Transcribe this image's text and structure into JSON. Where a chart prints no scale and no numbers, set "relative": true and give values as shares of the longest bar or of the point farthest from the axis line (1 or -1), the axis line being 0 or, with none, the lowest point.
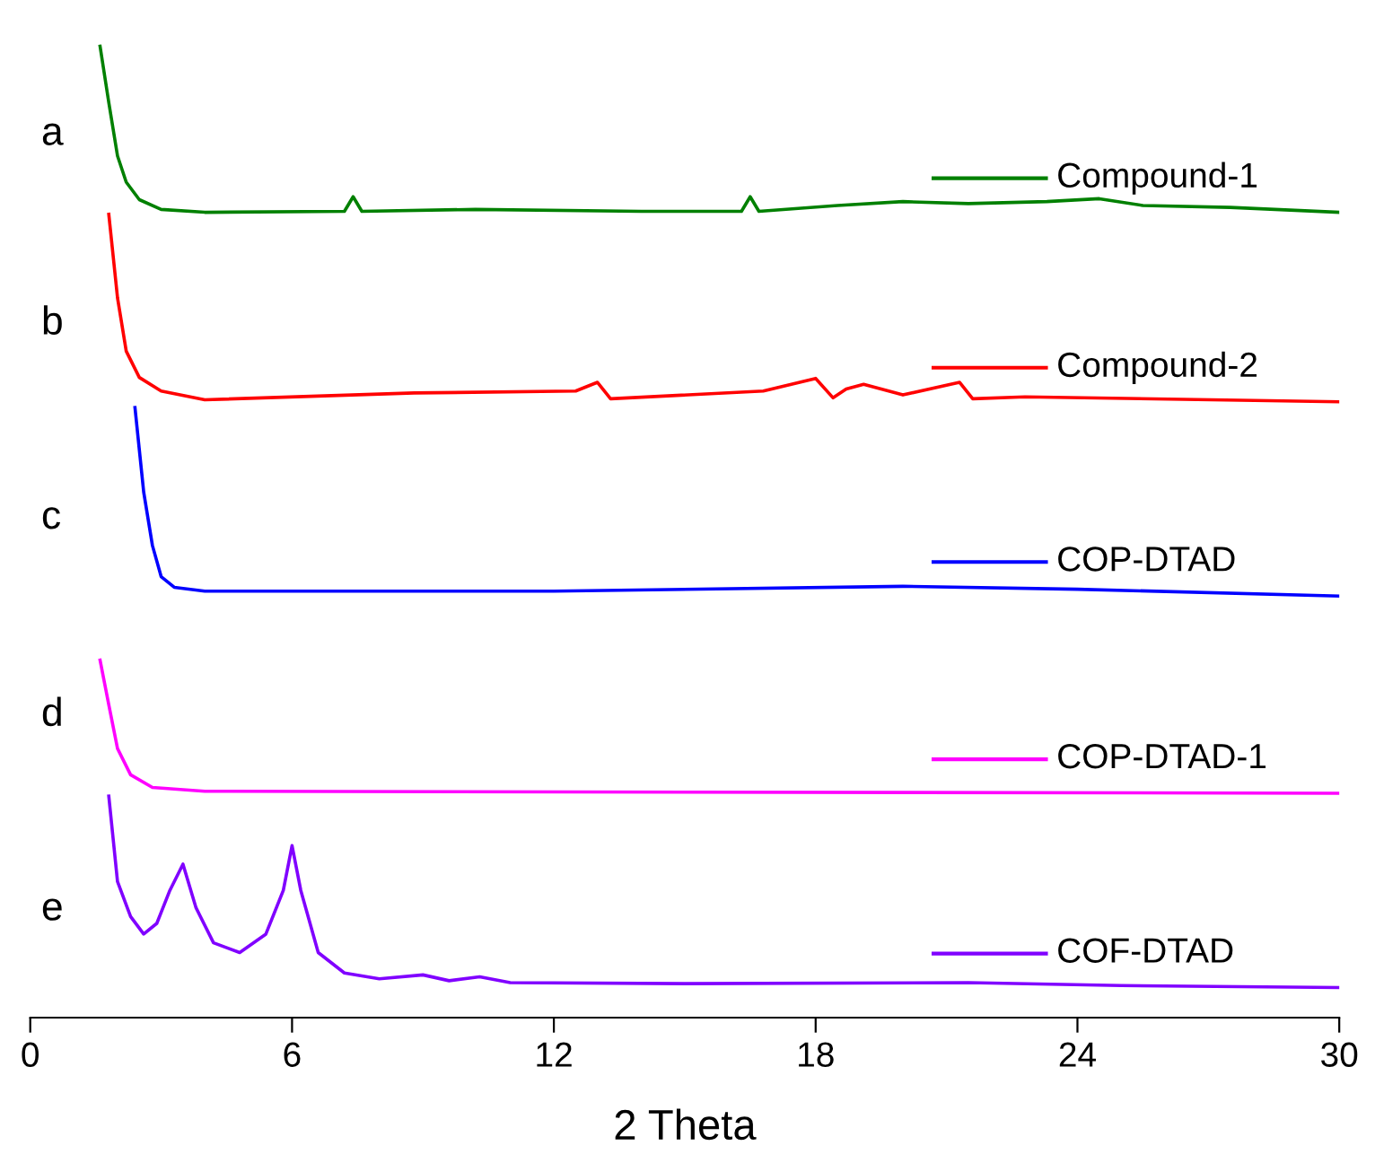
{
  "chart_data": {
    "type": "line",
    "relative": true,
    "xlabel": "2 Theta",
    "xlim": [
      0,
      30
    ],
    "xticks": [
      0,
      6,
      12,
      18,
      24,
      30
    ],
    "tick_labels": "x",
    "grid": false,
    "legend": "right",
    "marker": "none",
    "line_style": "solid",
    "annotations": [
      "a",
      "b",
      "c",
      "d",
      "e"
    ],
    "series": [
      {
        "name": "Compound-1",
        "color": "#008000",
        "x": [
          1.6,
          1.8,
          2.0,
          2.2,
          2.5,
          3.0,
          4.0,
          7.2,
          7.4,
          7.6,
          10.2,
          14,
          16.3,
          16.5,
          16.7,
          18.5,
          20.0,
          21.5,
          23.3,
          24.5,
          25.5,
          27.5,
          30
        ],
        "values": [
          1.0,
          0.942,
          0.887,
          0.86,
          0.842,
          0.832,
          0.829,
          0.83,
          0.845,
          0.83,
          0.832,
          0.83,
          0.83,
          0.845,
          0.83,
          0.836,
          0.84,
          0.838,
          0.84,
          0.843,
          0.836,
          0.834,
          0.829
        ]
      },
      {
        "name": "Compound-2",
        "color": "#ff0000",
        "x": [
          1.8,
          2.0,
          2.2,
          2.5,
          3.0,
          4.0,
          8.8,
          12.5,
          13.0,
          13.3,
          16.8,
          18.0,
          18.4,
          18.7,
          19.1,
          20.0,
          21.3,
          21.6,
          22.8,
          30
        ],
        "values": [
          0.827,
          0.741,
          0.686,
          0.659,
          0.645,
          0.636,
          0.643,
          0.645,
          0.654,
          0.637,
          0.645,
          0.658,
          0.638,
          0.647,
          0.652,
          0.641,
          0.654,
          0.637,
          0.639,
          0.634
        ]
      },
      {
        "name": "COP-DTAD",
        "color": "#0000ff",
        "x": [
          2.4,
          2.6,
          2.8,
          3.0,
          3.3,
          4.0,
          12,
          20,
          24,
          30
        ],
        "values": [
          0.628,
          0.541,
          0.486,
          0.454,
          0.443,
          0.439,
          0.439,
          0.444,
          0.441,
          0.434
        ]
      },
      {
        "name": "COP-DTAD-1",
        "color": "#ff00ff",
        "x": [
          1.6,
          1.8,
          2.0,
          2.3,
          2.8,
          4.0,
          30
        ],
        "values": [
          0.368,
          0.322,
          0.277,
          0.25,
          0.237,
          0.233,
          0.231
        ]
      },
      {
        "name": "COF-DTAD",
        "color": "#8000ff",
        "x": [
          1.8,
          2.0,
          2.3,
          2.6,
          2.9,
          3.2,
          3.5,
          3.8,
          4.2,
          4.8,
          5.4,
          5.8,
          6.0,
          6.2,
          6.6,
          7.2,
          8.0,
          9.0,
          9.6,
          10.3,
          11,
          15,
          21.5,
          25,
          30
        ],
        "values": [
          0.228,
          0.14,
          0.104,
          0.086,
          0.097,
          0.131,
          0.158,
          0.113,
          0.077,
          0.067,
          0.086,
          0.131,
          0.177,
          0.131,
          0.067,
          0.046,
          0.04,
          0.044,
          0.038,
          0.042,
          0.036,
          0.035,
          0.036,
          0.033,
          0.031
        ]
      }
    ]
  }
}
